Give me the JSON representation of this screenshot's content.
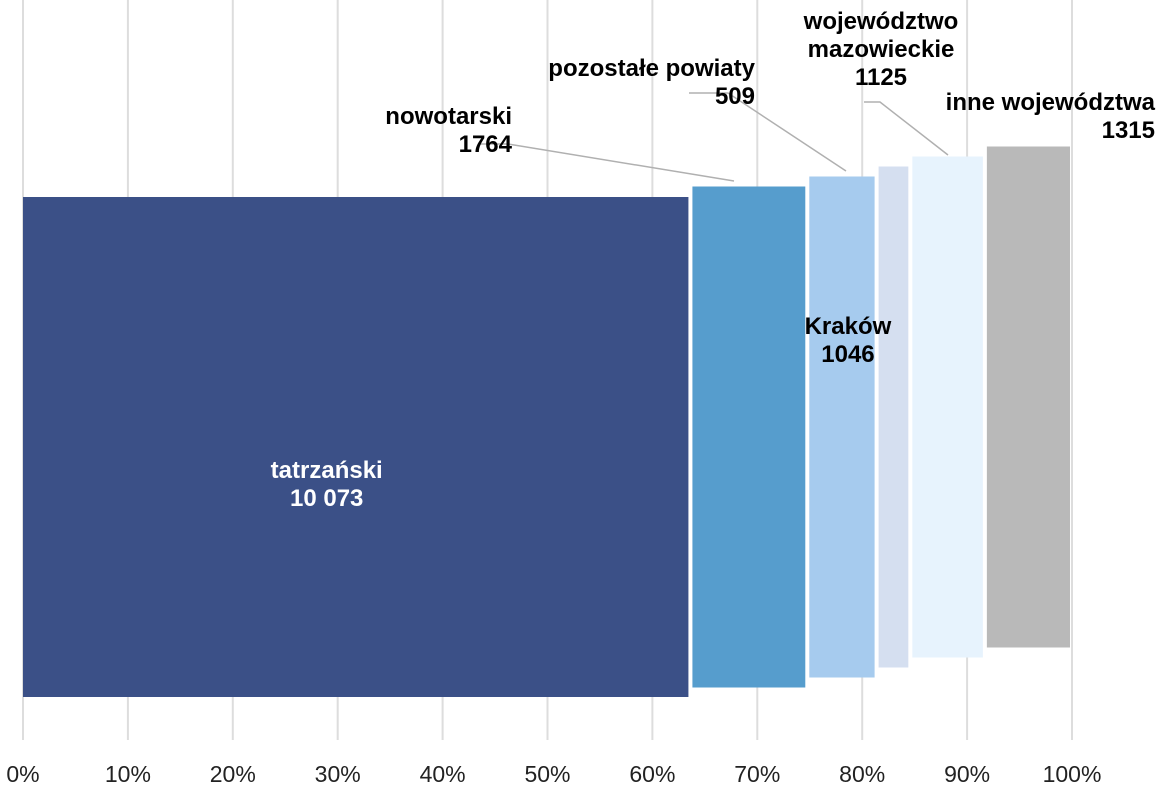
{
  "chart_data": {
    "type": "bar",
    "subtype": "variable-width stacked (marimekko-style) horizontal bar",
    "x_axis": {
      "unit": "%",
      "ticks": [
        "0%",
        "10%",
        "20%",
        "30%",
        "40%",
        "50%",
        "60%",
        "70%",
        "80%",
        "90%",
        "100%"
      ],
      "range": [
        0,
        100
      ]
    },
    "grid": "vertical",
    "series": [
      {
        "name": "tatrzański",
        "value": 10073,
        "value_label": "10 073",
        "color": "#3b5087"
      },
      {
        "name": "nowotarski",
        "value": 1764,
        "value_label": "1764",
        "color": "#569dcd"
      },
      {
        "name": "Kraków",
        "value": 1046,
        "value_label": "1046",
        "color": "#a6cbee"
      },
      {
        "name": "pozostałe powiaty",
        "value": 509,
        "value_label": "509",
        "color": "#d5dff0"
      },
      {
        "name": "województwo mazowieckie",
        "value": 1125,
        "value_label": "1125",
        "color": "#e7f3fd"
      },
      {
        "name": "inne województwa",
        "value": 1315,
        "value_label": "1315",
        "color": "#b9b9b9"
      }
    ]
  }
}
